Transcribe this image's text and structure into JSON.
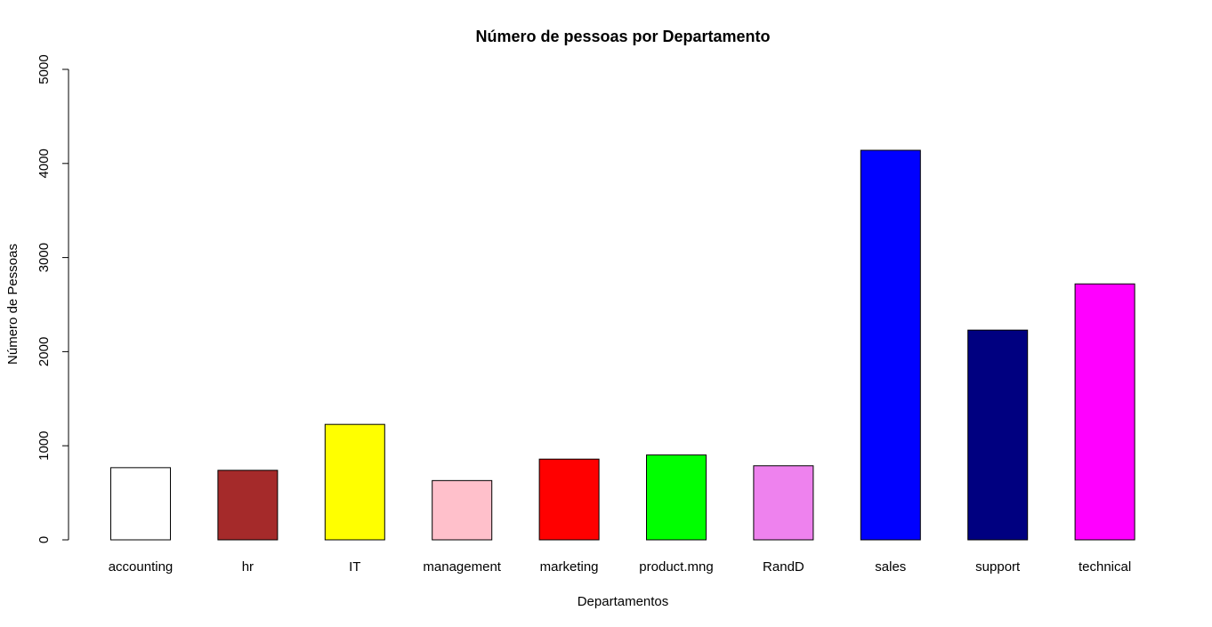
{
  "chart_data": {
    "type": "bar",
    "title": "Número de pessoas por Departamento",
    "xlabel": "Departamentos",
    "ylabel": "Número de Pessoas",
    "categories": [
      "accounting",
      "hr",
      "IT",
      "management",
      "marketing",
      "product.mng",
      "RandD",
      "sales",
      "support",
      "technical"
    ],
    "values": [
      767,
      739,
      1227,
      630,
      858,
      902,
      787,
      4140,
      2229,
      2720
    ],
    "colors": [
      "#FFFFFF",
      "#A52A2A",
      "#FFFF00",
      "#FFC0CB",
      "#FF0000",
      "#00FF00",
      "#EE82EE",
      "#0000FF",
      "#000080",
      "#FF00FF"
    ],
    "ylim": [
      0,
      5000
    ],
    "yticks": [
      "0",
      "1000",
      "2000",
      "3000",
      "4000",
      "5000"
    ],
    "grid": false,
    "legend": "none"
  }
}
